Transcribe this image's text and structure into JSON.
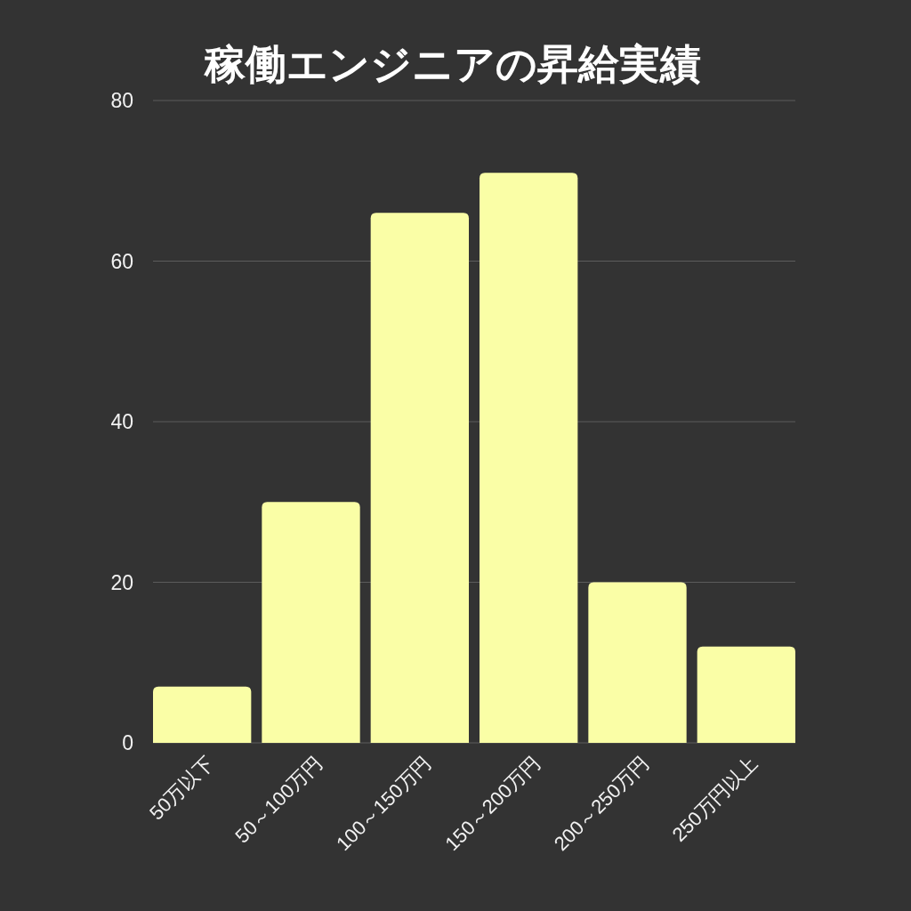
{
  "chart_data": {
    "type": "bar",
    "title": "稼働エンジニアの昇給実績",
    "categories": [
      "50万以下",
      "50～100万円",
      "100～150万円",
      "150～200万円",
      "200～250万円",
      "250万円以上"
    ],
    "values": [
      7,
      30,
      66,
      71,
      20,
      12
    ],
    "color": "#fafea6",
    "ylim": [
      0,
      80
    ],
    "yticks": [
      0,
      20,
      40,
      60,
      80
    ],
    "grid": "y"
  }
}
